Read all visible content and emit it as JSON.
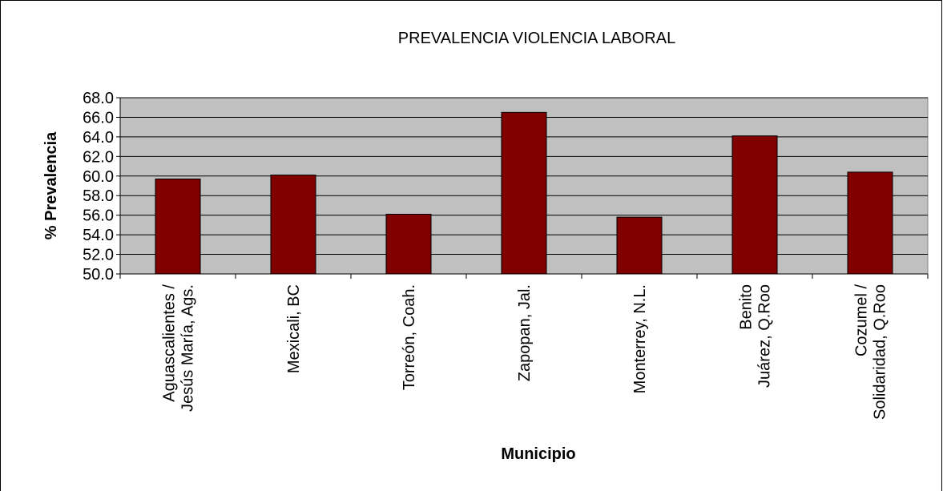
{
  "chart_data": {
    "type": "bar",
    "title": "PREVALENCIA VIOLENCIA LABORAL",
    "x_label": "Municipio",
    "y_label": "% Prevalencia",
    "categories": [
      "Aguascalientes /\nJesús María, Ags.",
      "Mexicali, BC",
      "Torreón, Coah.",
      "Zapopan, Jal.",
      "Monterrey, N.L.",
      "Benito\nJuárez, Q.Roo",
      "Cozumel /\nSolidaridad, Q.Roo"
    ],
    "values": [
      59.7,
      60.1,
      56.1,
      66.5,
      55.8,
      64.1,
      60.4
    ],
    "color": "#800000",
    "ylim": [
      50,
      68
    ],
    "yticks": [
      {
        "value": 50,
        "label": "50.0"
      },
      {
        "value": 52,
        "label": "52.0"
      },
      {
        "value": 54,
        "label": "54.0"
      },
      {
        "value": 56,
        "label": "56.0"
      },
      {
        "value": 58,
        "label": "58.0"
      },
      {
        "value": 60,
        "label": "60.0"
      },
      {
        "value": 62,
        "label": "62.0"
      },
      {
        "value": 64,
        "label": "64.0"
      },
      {
        "value": 66,
        "label": "66.0"
      },
      {
        "value": 68,
        "label": "68.0"
      }
    ],
    "grid": true
  }
}
